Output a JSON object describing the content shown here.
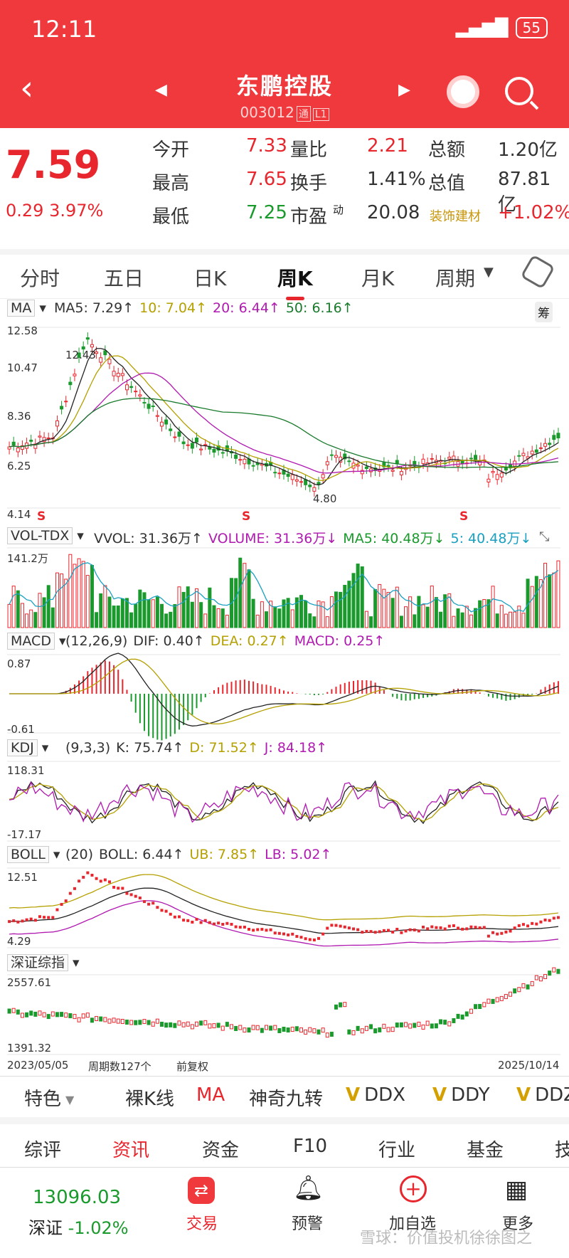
{
  "status": {
    "time": "12:11",
    "battery": "55"
  },
  "header": {
    "name": "东鹏控股",
    "code": "003012",
    "tag1": "通",
    "tag2": "L1"
  },
  "quote": {
    "price": "7.59",
    "change": "0.29",
    "pct": "3.97%",
    "rows": [
      [
        "今开",
        "7.33",
        "量比",
        "2.21",
        "总额",
        "1.20亿"
      ],
      [
        "最高",
        "7.65",
        "换手",
        "1.41%",
        "总值",
        "87.81亿"
      ],
      [
        "最低",
        "7.25",
        "市盈",
        "20.08",
        "装饰建材",
        "+1.02%"
      ]
    ],
    "dyn": "动"
  },
  "tabs": [
    "分时",
    "五日",
    "日K",
    "周K",
    "月K",
    "周期"
  ],
  "ma": {
    "name": "MA",
    "t1": "MA5: 7.29↑",
    "t2": "10: 7.04↑",
    "t3": "20: 6.44↑",
    "t4": "50: 6.16↑",
    "right": "筹",
    "y": [
      "12.58",
      "10.47",
      "8.36",
      "6.25",
      "4.14"
    ],
    "hi": "12.43",
    "lo": "4.80",
    "s": "S"
  },
  "vol": {
    "name": "VOL-TDX",
    "t1": "VVOL: 31.36万↑",
    "t2": "VOLUME: 31.36万↓",
    "t3": "MA5: 40.48万↓",
    "t4": "5: 40.48万↓",
    "y": "141.2万"
  },
  "macd": {
    "name": "MACD",
    "t0": "(12,26,9)",
    "t1": "DIF: 0.40↑",
    "t2": "DEA: 0.27↑",
    "t3": "MACD: 0.25↑",
    "ymax": "0.87",
    "ymin": "-0.61"
  },
  "kdj": {
    "name": "KDJ",
    "t0": "(9,3,3)",
    "t1": "K: 75.74↑",
    "t2": "D: 71.52↑",
    "t3": "J: 84.18↑",
    "ymax": "118.31",
    "ymin": "-17.17"
  },
  "boll": {
    "name": "BOLL",
    "t0": "(20)",
    "t1": "BOLL: 6.44↑",
    "t2": "UB: 7.85↑",
    "t3": "LB: 5.02↑",
    "ymax": "12.51",
    "ymin": "4.29"
  },
  "index": {
    "name": "深证综指",
    "ymax": "2557.61",
    "ymin": "1391.32",
    "start": "2023/05/05",
    "period": "周期数127个",
    "adj": "前复权",
    "end": "2025/10/14"
  },
  "toolbar": [
    "特色",
    "裸K线",
    "MA",
    "神奇九转",
    "DDX",
    "DDY",
    "DDZ"
  ],
  "footer_tabs": [
    "综评",
    "资讯",
    "资金",
    "F10",
    "行业",
    "基金",
    "技"
  ],
  "bottomnav": {
    "idx_val": "13096.03",
    "idx_name": "深证",
    "idx_chg": "-1.02%",
    "items": [
      "交易",
      "预警",
      "加自选",
      "更多"
    ]
  },
  "watermark": "雪球：价值投机徐徐图之"
}
